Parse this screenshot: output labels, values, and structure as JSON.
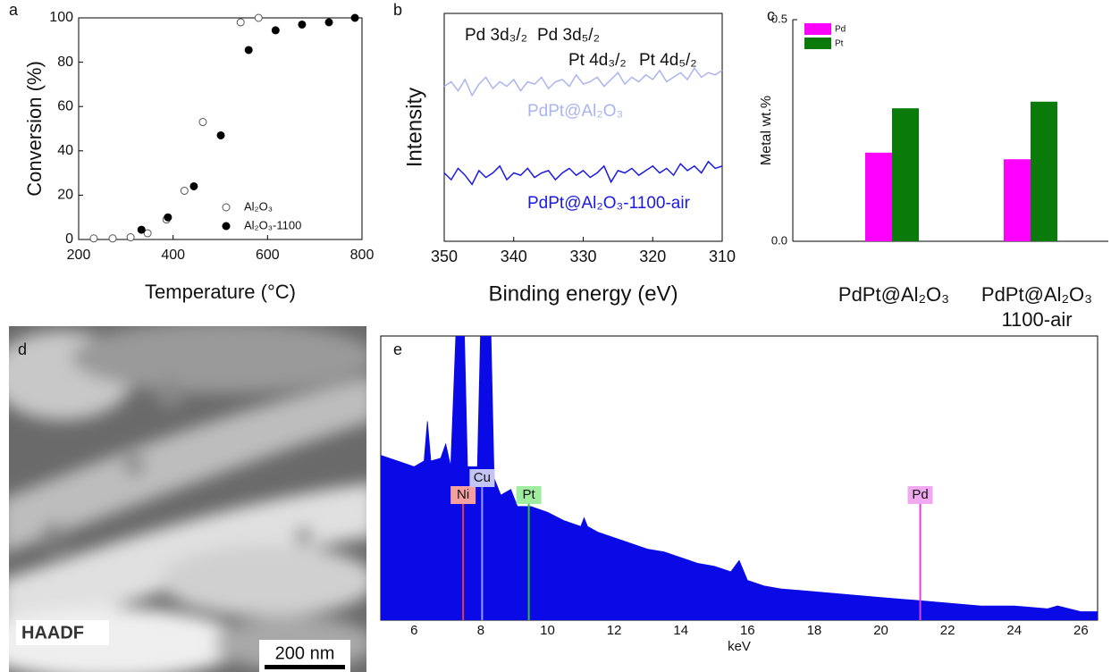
{
  "chart_data": [
    {
      "type": "scatter",
      "panel_label": "a",
      "x_label": "Temperature (°C)",
      "y_label": "Conversion (%)",
      "xlim": [
        200,
        800
      ],
      "xticks": [
        200,
        400,
        600,
        800
      ],
      "ylim": [
        0,
        100
      ],
      "yticks": [
        0,
        20,
        40,
        60,
        80,
        100
      ],
      "legend": "lower right",
      "series": [
        {
          "name": "Al₂O₃",
          "marker": "open",
          "color": "#555555",
          "x": [
            232,
            272,
            310,
            346,
            386,
            424,
            463,
            543,
            581
          ],
          "values": [
            0.5,
            0.5,
            1,
            2.8,
            9,
            22,
            53,
            98,
            100
          ]
        },
        {
          "name": "Al₂O₃-1100",
          "marker": "filled",
          "color": "#000000",
          "x": [
            333,
            389,
            444,
            501,
            560,
            617,
            673,
            730,
            785
          ],
          "values": [
            4.4,
            10,
            24,
            47,
            85.5,
            94.4,
            97,
            98,
            100
          ]
        }
      ]
    },
    {
      "type": "line",
      "panel_label": "b",
      "x_label": "Binding energy (eV)",
      "y_label": "Intensity",
      "xlim": [
        350,
        310
      ],
      "xticks": [
        350,
        340,
        330,
        320,
        310
      ],
      "ylim": [
        0,
        1
      ],
      "annotations": [
        "Pd 3d₃/₂",
        "Pd 3d₅/₂",
        "Pt 4d₃/₂",
        "Pt 4d₅/₂"
      ],
      "x": [
        350,
        349,
        348,
        347,
        346,
        345,
        344,
        343,
        342,
        341,
        340,
        339,
        338,
        337,
        336,
        335,
        334,
        333,
        332,
        331,
        330,
        329,
        328,
        327,
        326,
        325,
        324,
        323,
        322,
        321,
        320,
        319,
        318,
        317,
        316,
        315,
        314,
        313,
        312,
        311,
        310
      ],
      "series": [
        {
          "name": "PdPt@Al₂O₃",
          "color": "#aab4f0",
          "values": [
            0.68,
            0.7,
            0.66,
            0.71,
            0.64,
            0.69,
            0.72,
            0.67,
            0.7,
            0.68,
            0.71,
            0.66,
            0.7,
            0.69,
            0.72,
            0.67,
            0.7,
            0.71,
            0.68,
            0.73,
            0.69,
            0.7,
            0.72,
            0.68,
            0.71,
            0.74,
            0.69,
            0.72,
            0.7,
            0.73,
            0.71,
            0.75,
            0.7,
            0.72,
            0.74,
            0.71,
            0.76,
            0.72,
            0.74,
            0.73,
            0.75
          ]
        },
        {
          "name": "PdPt@Al₂O₃-1100-air",
          "color": "#1a1ae0",
          "values": [
            0.3,
            0.27,
            0.32,
            0.29,
            0.25,
            0.31,
            0.28,
            0.3,
            0.33,
            0.27,
            0.3,
            0.29,
            0.32,
            0.28,
            0.3,
            0.31,
            0.27,
            0.3,
            0.32,
            0.29,
            0.31,
            0.28,
            0.3,
            0.33,
            0.26,
            0.31,
            0.3,
            0.32,
            0.29,
            0.31,
            0.33,
            0.3,
            0.32,
            0.29,
            0.34,
            0.31,
            0.33,
            0.3,
            0.35,
            0.32,
            0.33
          ]
        }
      ]
    },
    {
      "type": "bar",
      "panel_label": "c",
      "y_label": "Metal wt.%",
      "categories": [
        "PdPt@Al₂O₃",
        "PdPt@Al₂O₃\n1100-air"
      ],
      "ylim": [
        0,
        0.5
      ],
      "yticks": [
        {
          "value": 0,
          "label": "0.0"
        },
        0.5
      ],
      "legend": "upper left",
      "series": [
        {
          "name": "Pd",
          "color": "#ff00ff",
          "values": [
            0.2,
            0.185
          ]
        },
        {
          "name": "Pt",
          "color": "#0a7a0a",
          "values": [
            0.3,
            0.315
          ]
        }
      ]
    },
    {
      "type": "area",
      "panel_label": "e",
      "x_label": "keV",
      "color": "#0a0ae6",
      "xlim": [
        5,
        26.5
      ],
      "xticks": [
        6,
        8,
        10,
        12,
        14,
        16,
        18,
        20,
        22,
        24,
        26
      ],
      "ylim": [
        0,
        100
      ],
      "x": [
        5,
        5.5,
        6,
        6.3,
        6.4,
        6.5,
        6.8,
        6.95,
        7.1,
        7.35,
        7.45,
        7.6,
        7.9,
        8.05,
        8.25,
        8.4,
        8.6,
        8.9,
        9.1,
        9.5,
        10,
        10.5,
        11,
        11.1,
        11.2,
        11.5,
        12,
        12.5,
        13,
        13.5,
        14,
        14.5,
        15,
        15.5,
        15.75,
        16,
        16.5,
        17,
        18,
        19,
        20,
        21,
        22,
        23,
        24,
        25,
        25.3,
        26,
        26.5
      ],
      "values": [
        58,
        56,
        54,
        56,
        70,
        56,
        57,
        62,
        54,
        130,
        130,
        54,
        54,
        130,
        130,
        50,
        44,
        46,
        40,
        40,
        38,
        35,
        33,
        36,
        33,
        31,
        29,
        27,
        25,
        24,
        22,
        20,
        19,
        17,
        21,
        14,
        12,
        11,
        10,
        9,
        8,
        7,
        6,
        5,
        5,
        4,
        5,
        3,
        3
      ],
      "peak_labels": [
        {
          "label": "Ni",
          "x": 7.47,
          "color": "#e04040",
          "fill": "#f4a0a0"
        },
        {
          "label": "Cu",
          "x": 8.04,
          "color": "#9a9ae8",
          "fill": "#c4c4f4"
        },
        {
          "label": "Pt",
          "x": 9.44,
          "color": "#30c030",
          "fill": "#a0eca0"
        },
        {
          "label": "Pd",
          "x": 21.18,
          "color": "#e040e0",
          "fill": "#f0a8f0"
        }
      ]
    }
  ],
  "image": {
    "panel_label": "d",
    "caption": "HAADF",
    "scale_bar": "200 nm"
  }
}
